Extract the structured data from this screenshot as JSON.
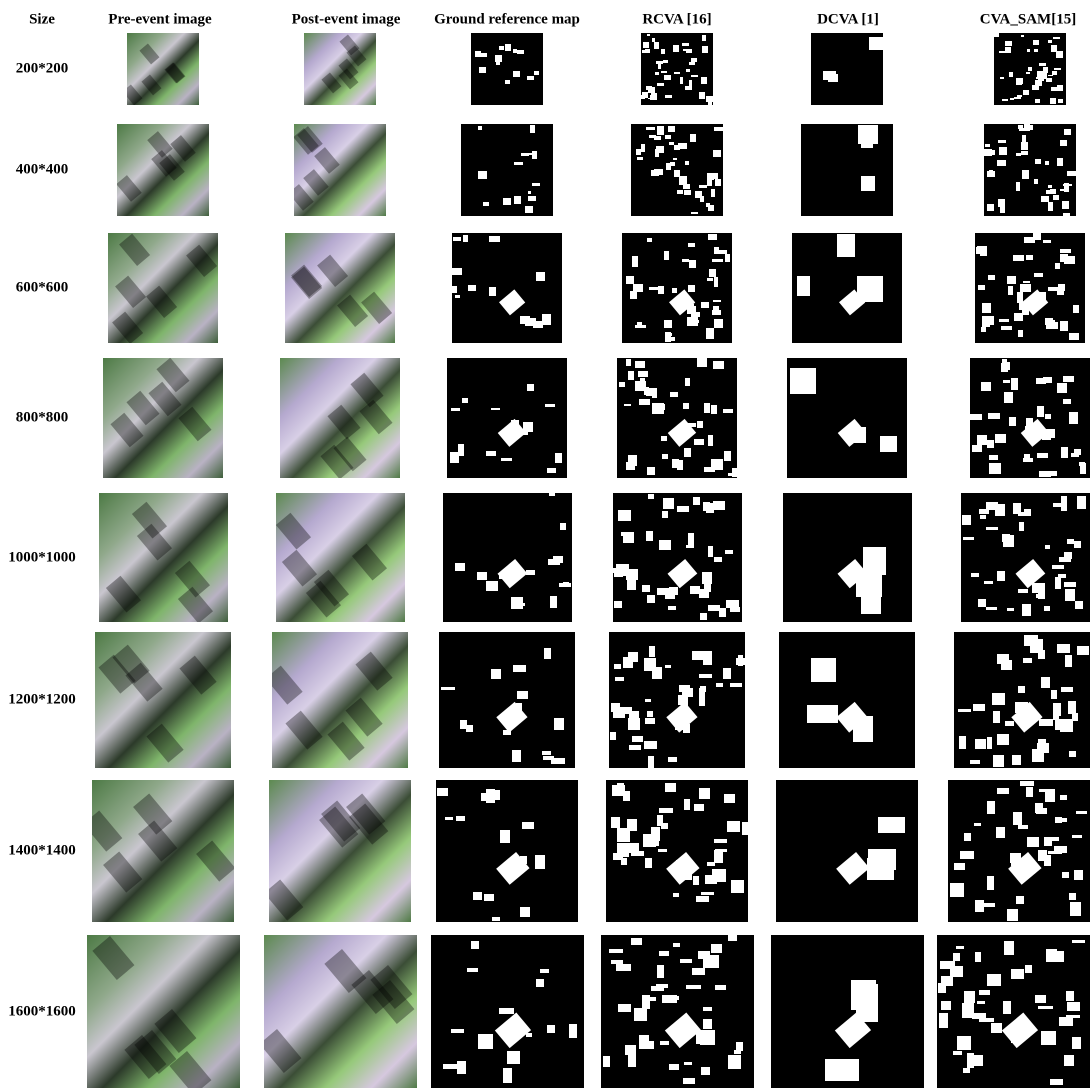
{
  "header": {
    "columns": [
      "Size",
      "Pre-event image",
      "Post-event image",
      "Ground reference map",
      "RCVA [16]",
      "DCVA [1]",
      "CVA_SAM[15]"
    ]
  },
  "rows": [
    {
      "label": "200*200"
    },
    {
      "label": "400*400"
    },
    {
      "label": "600*600"
    },
    {
      "label": "800*800"
    },
    {
      "label": "1000*1000"
    },
    {
      "label": "1200*1200"
    },
    {
      "label": "1400*1400"
    },
    {
      "label": "1600*1600"
    }
  ]
}
